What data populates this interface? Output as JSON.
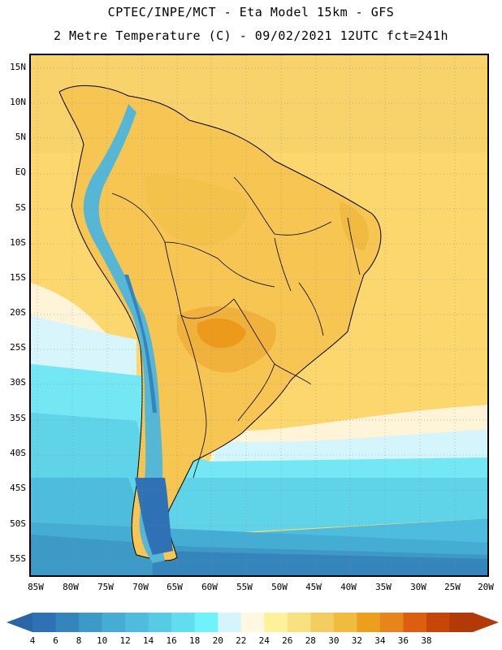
{
  "header": {
    "line1": "CPTEC/INPE/MCT -  Eta Model 15km - GFS",
    "line2": "2 Metre Temperature (C) - 09/02/2021 12UTC fct=241h"
  },
  "map": {
    "lat_labels": [
      "15N",
      "10N",
      "5N",
      "EQ",
      "5S",
      "10S",
      "15S",
      "20S",
      "25S",
      "30S",
      "35S",
      "40S",
      "45S",
      "50S",
      "55S"
    ],
    "lon_labels": [
      "85W",
      "80W",
      "75W",
      "70W",
      "65W",
      "60W",
      "55W",
      "50W",
      "45W",
      "40W",
      "35W",
      "30W",
      "25W",
      "20W"
    ],
    "ocean_fill": "#fcd76d"
  },
  "colorbar": {
    "labels": [
      "4",
      "6",
      "8",
      "10",
      "12",
      "14",
      "16",
      "18",
      "20",
      "22",
      "24",
      "26",
      "28",
      "30",
      "32",
      "34",
      "36",
      "38"
    ],
    "colors": [
      "#2e72b5",
      "#3585bd",
      "#3d9ac6",
      "#45acd3",
      "#4ebcdd",
      "#56cbe3",
      "#62dcef",
      "#6ff3fb",
      "#d4f5fb",
      "#fff8e0",
      "#fdf29a",
      "#f8e180",
      "#f4cd60",
      "#f0bc3d",
      "#ec9f1a",
      "#e7841a",
      "#dd5f0e",
      "#c84508",
      "#b23a06"
    ],
    "left_arrow": "#2a66a6",
    "right_arrow": "#b23a06"
  }
}
